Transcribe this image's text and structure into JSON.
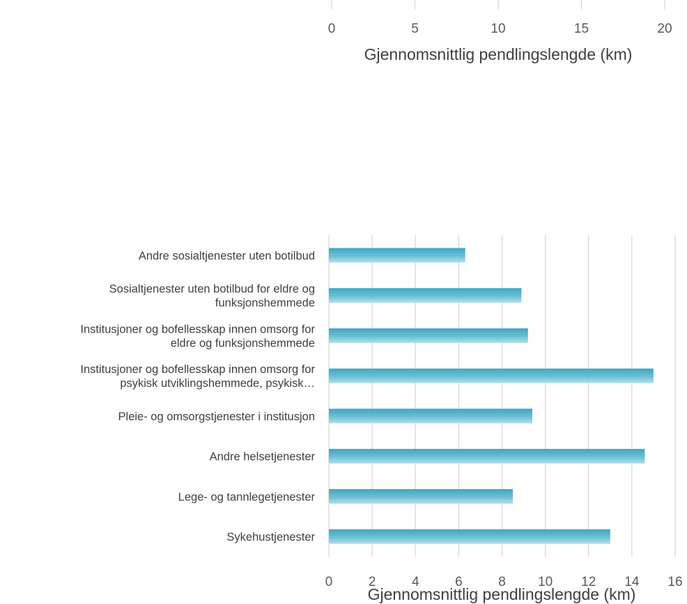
{
  "chart_data": [
    {
      "type": "bar",
      "orientation": "horizontal",
      "partially_visible": true,
      "xlim": [
        0,
        20
      ],
      "x_ticks": [
        "0",
        "5",
        "10",
        "15",
        "20"
      ],
      "xlabel": "Gjennomsnittlig pendlingslengde (km)",
      "grid": true
    },
    {
      "type": "bar",
      "orientation": "horizontal",
      "categories": [
        "Andre sosialtjenester uten botilbud",
        "Sosialtjenester uten botilbud for eldre og funksjonshemmede",
        "Institusjoner og bofellesskap innen omsorg for eldre og funksjonshemmede",
        "Institusjoner og bofellesskap innen omsorg for psykisk utviklingshemmede, psykisk…",
        "Pleie- og omsorgstjenester i institusjon",
        "Andre helsetjenester",
        "Lege- og tannlegetjenester",
        "Sykehustjenester"
      ],
      "category_lines": [
        [
          "Andre sosialtjenester uten botilbud"
        ],
        [
          "Sosialtjenester uten botilbud for eldre og",
          "funksjonshemmede"
        ],
        [
          "Institusjoner og bofellesskap innen omsorg for",
          "eldre og funksjonshemmede"
        ],
        [
          "Institusjoner og bofellesskap innen omsorg for",
          "psykisk utviklingshemmede, psykisk…"
        ],
        [
          "Pleie- og omsorgstjenester i institusjon"
        ],
        [
          "Andre helsetjenester"
        ],
        [
          "Lege- og tannlegetjenester"
        ],
        [
          "Sykehustjenester"
        ]
      ],
      "values": [
        6.3,
        8.9,
        9.2,
        15.0,
        9.4,
        14.6,
        8.5,
        13.0
      ],
      "xlim": [
        0,
        16
      ],
      "x_ticks": [
        "0",
        "2",
        "4",
        "6",
        "8",
        "10",
        "12",
        "14",
        "16"
      ],
      "xlabel": "Gjennomsnittlig pendlingslengde (km)",
      "grid": true,
      "bar_color": "#4bacc6"
    }
  ]
}
